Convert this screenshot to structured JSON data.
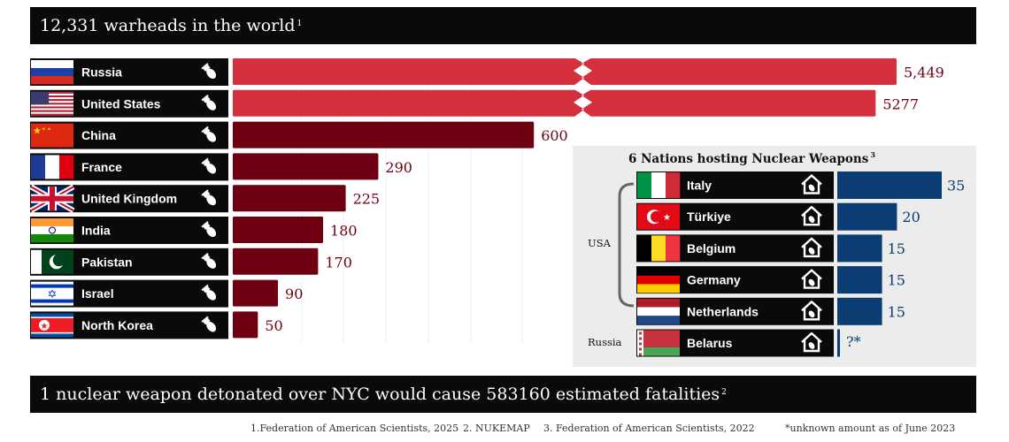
{
  "title": {
    "text": "12,331 warheads in the world",
    "note": "1"
  },
  "bottom": {
    "text": "1 nuclear weapon detonated over NYC would cause 583160 estimated fatalities",
    "note": "2"
  },
  "hosting_title": {
    "text": "6 Nations hosting Nuclear Weapons",
    "note": "3"
  },
  "hosting_groups": [
    "USA",
    "Russia"
  ],
  "footer": {
    "src1": "1.Federation of American Scientists, 2025",
    "src2": "2. NUKEMAP",
    "src3": "3. Federation of American Scientists, 2022",
    "note": "*unknown amount as of June 2023"
  },
  "colors": {
    "highlight": "#d5303e",
    "bar": "#6e0011",
    "hosting": "#0b3d72",
    "label_bg": "#0a0a0a",
    "panel": "#ececec"
  },
  "icons": {
    "warhead": "bomb-icon",
    "host": "house-bomb-icon"
  },
  "chart_data": [
    {
      "type": "bar",
      "orientation": "horizontal",
      "title": "12,331 warheads in the world",
      "categories": [
        "Russia",
        "United States",
        "China",
        "France",
        "United Kingdom",
        "India",
        "Pakistan",
        "Israel",
        "North Korea"
      ],
      "values": [
        5449,
        5277,
        600,
        290,
        225,
        180,
        170,
        90,
        50
      ],
      "value_labels": [
        "5,449",
        "5277",
        "600",
        "290",
        "225",
        "180",
        "170",
        "90",
        "50"
      ],
      "axis_break": true,
      "highlighted": [
        "Russia",
        "United States"
      ]
    },
    {
      "type": "bar",
      "orientation": "horizontal",
      "title": "6 Nations hosting Nuclear Weapons",
      "categories": [
        "Italy",
        "Türkiye",
        "Belgium",
        "Germany",
        "Netherlands",
        "Belarus"
      ],
      "values": [
        35,
        20,
        15,
        15,
        15,
        null
      ],
      "value_labels": [
        "35",
        "20",
        "15",
        "15",
        "15",
        "?*"
      ],
      "host_owner": [
        "USA",
        "USA",
        "USA",
        "USA",
        "USA",
        "Russia"
      ]
    }
  ]
}
